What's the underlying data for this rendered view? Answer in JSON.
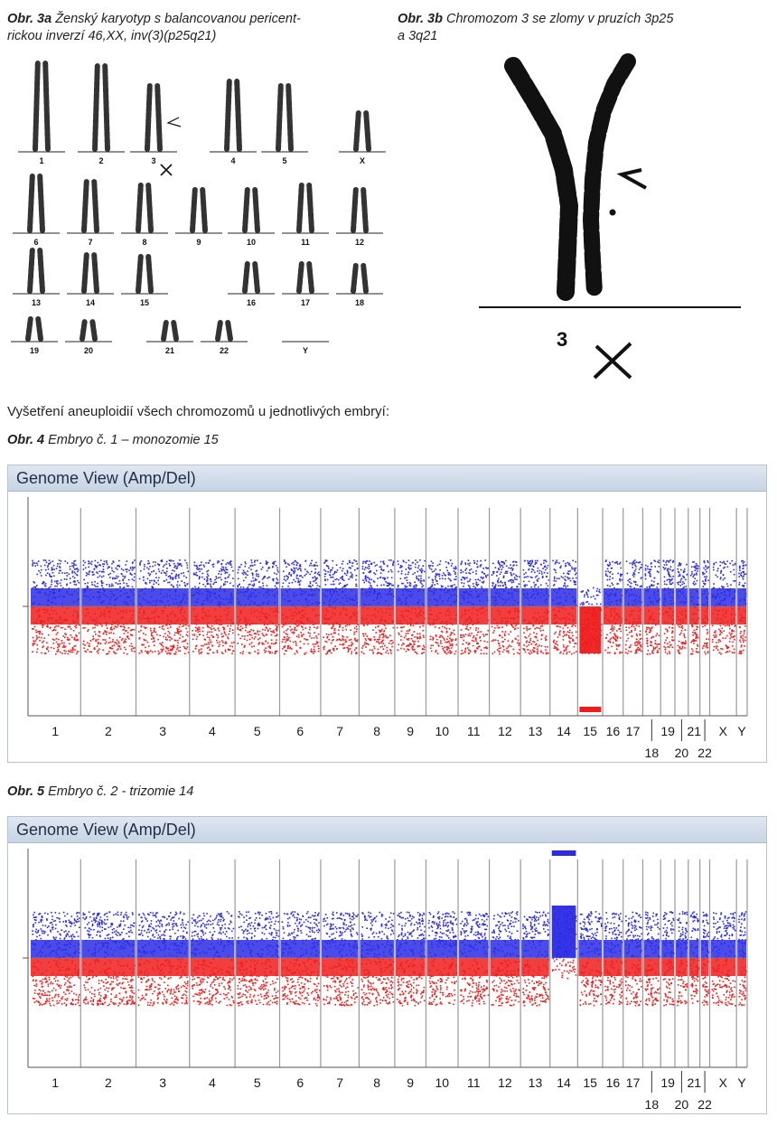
{
  "fig3a": {
    "label": "Obr. 3a",
    "text_line1": " Ženský karyotyp s balancovanou pericent-",
    "text_line2": "rickou inverzí 46,XX, inv(3)(p25q21)"
  },
  "fig3b": {
    "label": "Obr. 3b",
    "text_line1": " Chromozom 3 se zlomy v pruzích 3p25",
    "text_line2": "a 3q21"
  },
  "karyotype_labels": [
    "1",
    "2",
    "3",
    "4",
    "5",
    "X",
    "6",
    "7",
    "8",
    "9",
    "10",
    "11",
    "12",
    "13",
    "14",
    "15",
    "16",
    "17",
    "18",
    "19",
    "20",
    "21",
    "22",
    "Y"
  ],
  "chr3_label": "3",
  "intro": "Vyšetření aneuploidií všech chromozomů u jednotlivých embryí:",
  "fig4": {
    "label": "Obr. 4",
    "text": " Embryo č. 1 – monozomie 15",
    "title": "Genome View (Amp/Del)"
  },
  "fig5": {
    "label": "Obr. 5",
    "text": " Embryo č. 2 - trizomie 14",
    "title": "Genome View (Amp/Del)"
  },
  "chart_data": [
    {
      "type": "scatter",
      "title": "Genome View (Amp/Del)",
      "chromosomes_upper": [
        "1",
        "2",
        "3",
        "4",
        "5",
        "6",
        "7",
        "8",
        "9",
        "10",
        "11",
        "12",
        "13",
        "14",
        "15",
        "16",
        "17",
        "19",
        "21",
        "X",
        "Y"
      ],
      "chromosomes_lower": [
        "18",
        "20",
        "22"
      ],
      "altered_chromosome": "15",
      "alteration": "deletion",
      "colors": {
        "gain": "#2b2be6",
        "loss": "#ee1c1c"
      }
    },
    {
      "type": "scatter",
      "title": "Genome View (Amp/Del)",
      "chromosomes_upper": [
        "1",
        "2",
        "3",
        "4",
        "5",
        "6",
        "7",
        "8",
        "9",
        "10",
        "11",
        "12",
        "13",
        "14",
        "15",
        "16",
        "17",
        "19",
        "21",
        "X",
        "Y"
      ],
      "chromosomes_lower": [
        "18",
        "20",
        "22"
      ],
      "altered_chromosome": "14",
      "alteration": "amplification",
      "colors": {
        "gain": "#2b2be6",
        "loss": "#ee1c1c"
      }
    }
  ]
}
